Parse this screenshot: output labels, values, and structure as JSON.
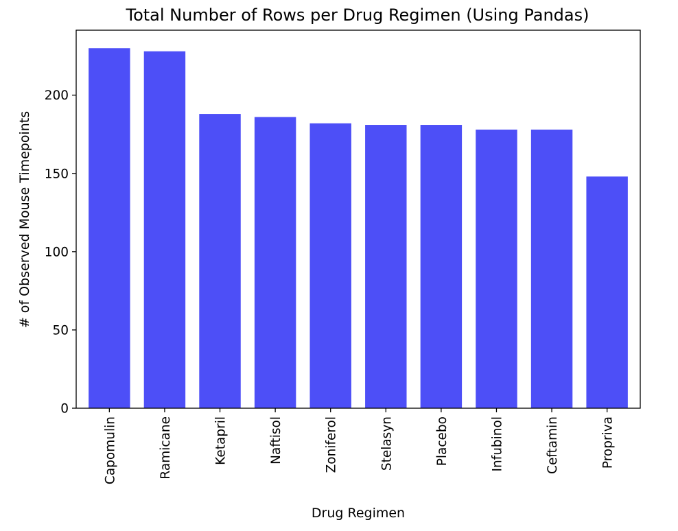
{
  "chart_data": {
    "type": "bar",
    "title": "Total Number of Rows per Drug Regimen (Using Pandas)",
    "xlabel": "Drug Regimen",
    "ylabel": "# of Observed Mouse Timepoints",
    "categories": [
      "Capomulin",
      "Ramicane",
      "Ketapril",
      "Naftisol",
      "Zoniferol",
      "Stelasyn",
      "Placebo",
      "Infubinol",
      "Ceftamin",
      "Propriva"
    ],
    "values": [
      230,
      228,
      188,
      186,
      182,
      181,
      181,
      178,
      178,
      148
    ],
    "yticks": [
      0,
      50,
      100,
      150,
      200
    ],
    "ylim": [
      0,
      241.5
    ],
    "bar_color": "#4d4ff7",
    "grid": false,
    "legend": "none"
  }
}
